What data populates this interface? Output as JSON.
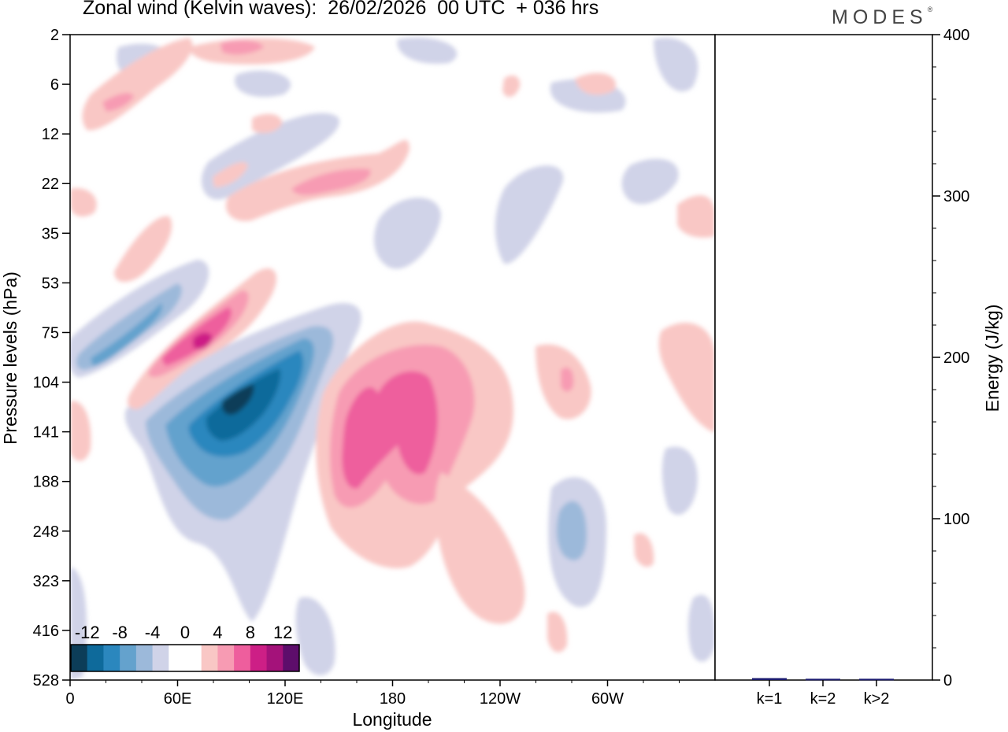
{
  "header": {
    "title": "Zonal wind (Kelvin waves):  26/02/2026  00 UTC  + 036 hrs",
    "brand": "MODES",
    "brand_mark": "®"
  },
  "chart_data": [
    {
      "type": "heatmap",
      "title": "Zonal wind (Kelvin waves):  26/02/2026  00 UTC  + 036 hrs",
      "xlabel": "Longitude",
      "ylabel": "Pressure levels (hPa)",
      "x_ticks": [
        "0",
        "60E",
        "120E",
        "180",
        "120W",
        "60W"
      ],
      "x_range_deg_east": [
        0,
        360
      ],
      "x_tick_values_deg_east": [
        0,
        60,
        120,
        180,
        240,
        300
      ],
      "y_ticks": [
        "2",
        "6",
        "12",
        "22",
        "35",
        "53",
        "75",
        "104",
        "141",
        "188",
        "248",
        "323",
        "416",
        "528"
      ],
      "colorbar": {
        "labels": [
          "-12",
          "-8",
          "-4",
          "0",
          "4",
          "8",
          "12"
        ],
        "colors": [
          "#0c3d58",
          "#0e6a9b",
          "#2b87be",
          "#64a2cd",
          "#9cb9da",
          "#d0d3e8",
          "#ffffff",
          "#ffffff",
          "#f9c7c5",
          "#f79bb3",
          "#ee5e9d",
          "#cd1f86",
          "#a4127a",
          "#5d0d6b"
        ]
      },
      "features": [
        {
          "name": "easterly-core-upper-troposphere",
          "lon_center": 95,
          "pressure_center_hPa": 130,
          "min_value": -14
        },
        {
          "name": "westerly-core-upper-troposphere",
          "lon_center": 185,
          "pressure_center_hPa": 150,
          "max_value": 10
        },
        {
          "name": "westerly-core-stratosphere",
          "lon_center": 75,
          "pressure_center_hPa": 80,
          "max_value": 12
        },
        {
          "name": "easterly-band-stratosphere",
          "lon_center": 20,
          "pressure_center_hPa": 88,
          "min_value": -8
        }
      ]
    },
    {
      "type": "bar",
      "ylabel": "Energy (J/kg)",
      "categories": [
        "k=1",
        "k=2",
        "k>2"
      ],
      "values": [
        1.2,
        0.8,
        0.8
      ],
      "ylim": [
        0,
        400
      ],
      "y_ticks": [
        "0",
        "100",
        "200",
        "300",
        "400"
      ],
      "bar_color": "#1a1a6e"
    }
  ]
}
